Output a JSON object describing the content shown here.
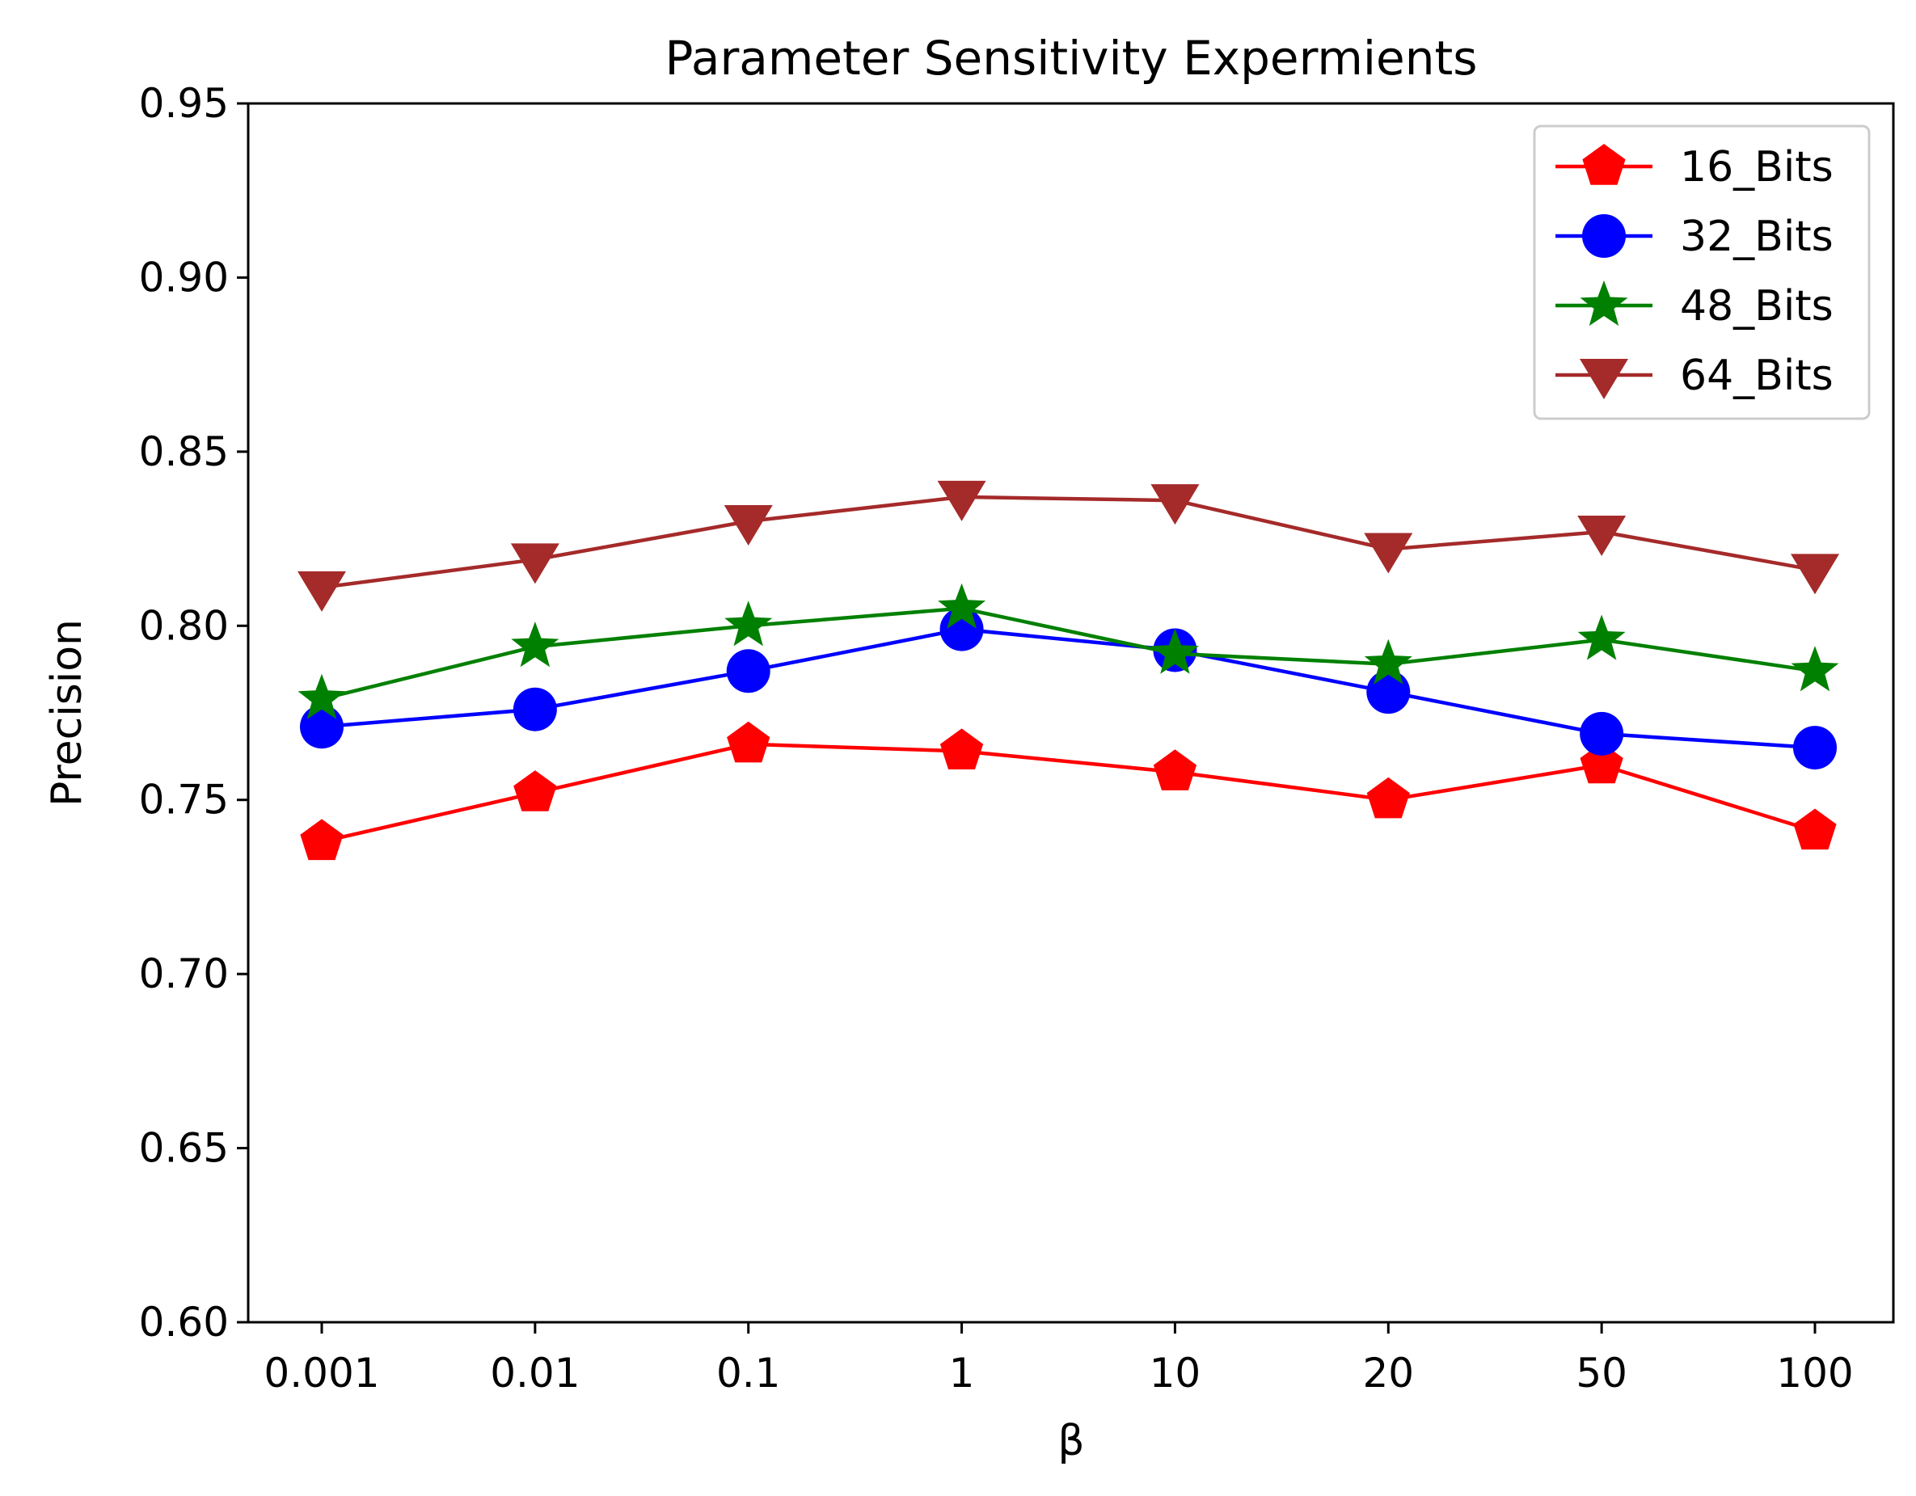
{
  "chart_data": {
    "type": "line",
    "title": "Parameter Sensitivity Expermients",
    "xlabel": "β",
    "ylabel": "Precision",
    "categories": [
      "0.001",
      "0.01",
      "0.1",
      "1",
      "10",
      "20",
      "50",
      "100"
    ],
    "ylim": [
      0.6,
      0.95
    ],
    "yticks": [
      0.6,
      0.65,
      0.7,
      0.75,
      0.8,
      0.85,
      0.9,
      0.95
    ],
    "ytick_labels": [
      "0.60",
      "0.65",
      "0.70",
      "0.75",
      "0.80",
      "0.85",
      "0.90",
      "0.95"
    ],
    "grid": false,
    "legend_position": "top-right",
    "series": [
      {
        "name": "16_Bits",
        "color": "#ff0000",
        "marker": "pentagon",
        "values": [
          0.738,
          0.752,
          0.766,
          0.764,
          0.758,
          0.75,
          0.76,
          0.741
        ]
      },
      {
        "name": "32_Bits",
        "color": "#0000ff",
        "marker": "circle",
        "values": [
          0.771,
          0.776,
          0.787,
          0.799,
          0.793,
          0.781,
          0.769,
          0.765
        ]
      },
      {
        "name": "48_Bits",
        "color": "#008000",
        "marker": "star",
        "values": [
          0.779,
          0.794,
          0.8,
          0.805,
          0.792,
          0.789,
          0.796,
          0.787
        ]
      },
      {
        "name": "64_Bits",
        "color": "#a52a2a",
        "marker": "triangle-down",
        "values": [
          0.811,
          0.819,
          0.83,
          0.837,
          0.836,
          0.822,
          0.827,
          0.816
        ]
      }
    ]
  }
}
